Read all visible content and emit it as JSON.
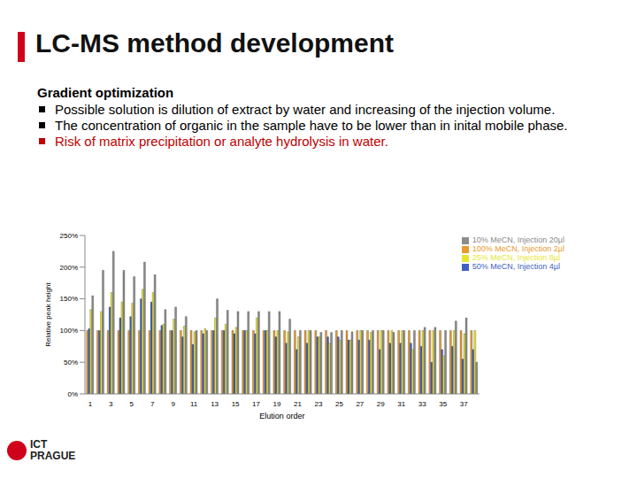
{
  "title": "LC-MS method development",
  "subtitle": "Gradient optimization",
  "bullets": [
    {
      "text": "Possible solution is dilution of extract by water and increasing of the injection volume.",
      "color": "#000000"
    },
    {
      "text": "The concentration of organic in the sample have to be lower than in inital mobile phase.",
      "color": "#000000"
    },
    {
      "text": "Risk of matrix precipitation or analyte hydrolysis in water.",
      "color": "#c00000"
    }
  ],
  "logo": [
    "ICT",
    "PRAGUE"
  ],
  "chart_data": {
    "type": "bar",
    "x_label": "Elution order",
    "y_label": "Relative peak height",
    "categories": [
      1,
      null,
      3,
      null,
      5,
      null,
      7,
      null,
      9,
      null,
      11,
      null,
      13,
      null,
      15,
      null,
      17,
      null,
      19,
      null,
      21,
      null,
      23,
      null,
      25,
      null,
      27,
      null,
      29,
      null,
      31,
      null,
      33,
      null,
      35,
      null,
      37,
      null
    ],
    "series": [
      {
        "name": "100% MeCN, Injection 2µl",
        "color": "#e89a2c",
        "values": [
          100,
          100,
          100,
          100,
          100,
          100,
          100,
          100,
          100,
          100,
          100,
          100,
          100,
          100,
          100,
          100,
          100,
          100,
          100,
          100,
          100,
          100,
          100,
          100,
          100,
          100,
          100,
          100,
          100,
          100,
          100,
          100,
          100,
          100,
          100,
          100,
          100,
          100
        ]
      },
      {
        "name": "50% MeCN, Injection 4µl",
        "color": "#3f5fc4",
        "values": [
          103,
          100,
          137,
          120,
          122,
          150,
          145,
          108,
          100,
          90,
          78,
          95,
          100,
          100,
          95,
          100,
          95,
          100,
          90,
          80,
          70,
          80,
          90,
          90,
          90,
          85,
          85,
          85,
          70,
          80,
          80,
          80,
          75,
          50,
          70,
          75,
          55,
          70
        ]
      },
      {
        "name": "25% MeCN, Injection 8µl",
        "color": "#e6e632",
        "values": [
          133,
          130,
          160,
          145,
          143,
          165,
          160,
          110,
          118,
          107,
          98,
          103,
          120,
          110,
          105,
          100,
          120,
          100,
          100,
          98,
          90,
          100,
          90,
          80,
          85,
          85,
          100,
          97,
          100,
          100,
          100,
          70,
          100,
          100,
          60,
          100,
          95,
          100
        ]
      },
      {
        "name": "10% MeCN, Injection 20µl",
        "color": "#8c8c8c",
        "values": [
          155,
          195,
          225,
          195,
          185,
          208,
          188,
          133,
          137,
          122,
          100,
          100,
          150,
          132,
          130,
          130,
          130,
          130,
          130,
          118,
          100,
          100,
          97,
          97,
          100,
          98,
          100,
          100,
          100,
          97,
          100,
          100,
          105,
          105,
          100,
          115,
          120,
          50
        ]
      }
    ],
    "ylim": [
      0,
      250
    ],
    "yticks": [
      {
        "value": 0,
        "label": "0%"
      },
      {
        "value": 50,
        "label": "50%"
      },
      {
        "value": 100,
        "label": "100%"
      },
      {
        "value": 150,
        "label": "150%"
      },
      {
        "value": 200,
        "label": "200%"
      },
      {
        "value": 250,
        "label": "250%"
      }
    ],
    "grid": false,
    "legend": "upper right"
  }
}
